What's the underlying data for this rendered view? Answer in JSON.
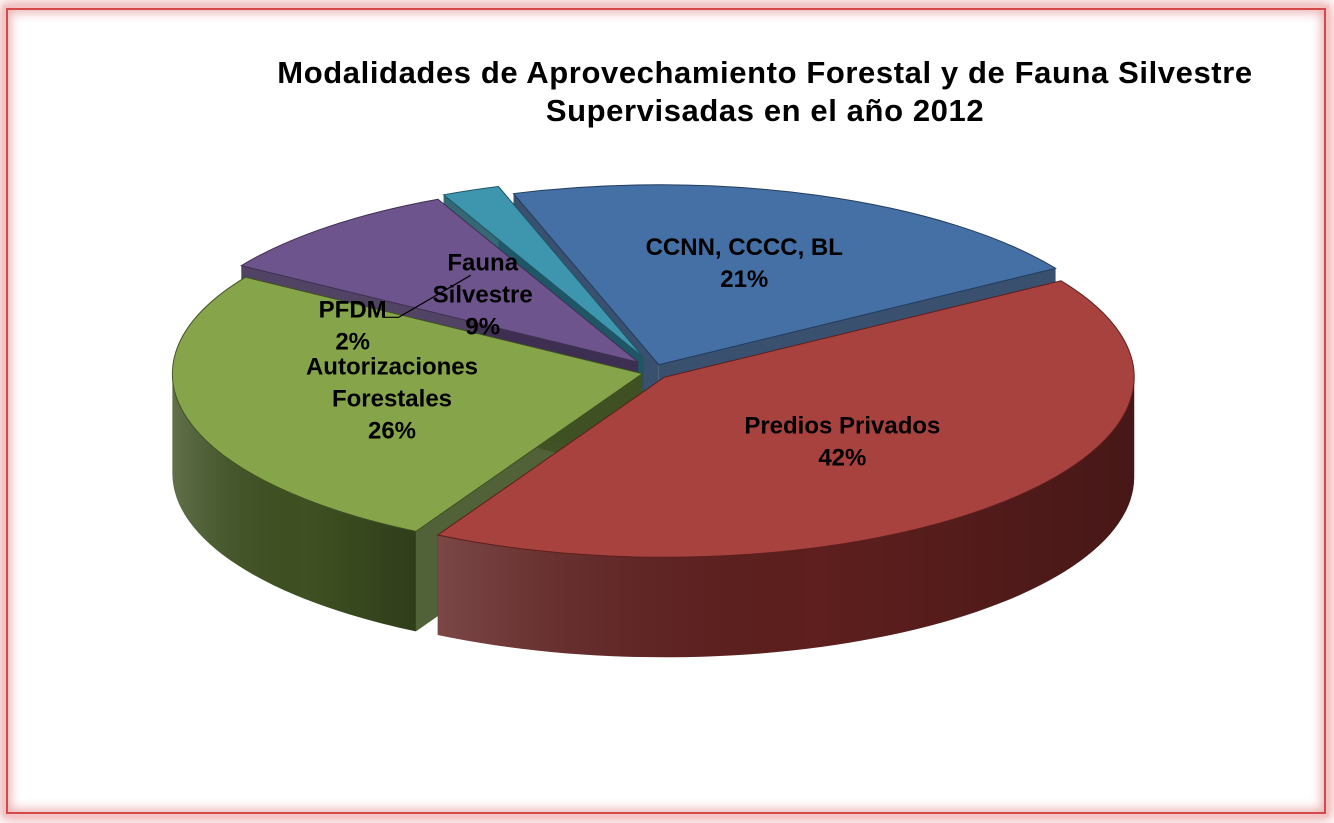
{
  "chart_data": {
    "type": "pie",
    "variant": "3d-exploded",
    "title": "Modalidades de Aprovechamiento Forestal y de Fauna Silvestre Supervisadas en el año 2012",
    "title_lines": [
      "Modalidades de Aprovechamiento Forestal y de Fauna Silvestre",
      "Supervisadas en el año 2012"
    ],
    "legend": "none",
    "slices": [
      {
        "name": "Predios Privados",
        "label_lines": [
          "Predios Privados"
        ],
        "value": 42,
        "pct_label": "42%",
        "color": "#A8423F",
        "side_color": "#5E1F1E"
      },
      {
        "name": "Autorizaciones Forestales",
        "label_lines": [
          "Autorizaciones",
          "Forestales"
        ],
        "value": 26,
        "pct_label": "26%",
        "color": "#86A44A",
        "side_color": "#3F5122"
      },
      {
        "name": "Fauna Silvestre",
        "label_lines": [
          "Fauna",
          "Silvestre"
        ],
        "value": 9,
        "pct_label": "9%",
        "color": "#6E548D",
        "side_color": "#3E2F52"
      },
      {
        "name": "PFDM",
        "label_lines": [
          "PFDM"
        ],
        "value": 2,
        "pct_label": "2%",
        "color": "#3D96AE",
        "side_color": "#1F5766"
      },
      {
        "name": "CCNN, CCCC, BL",
        "label_lines": [
          "CCNN, CCCC, BL"
        ],
        "value": 21,
        "pct_label": "21%",
        "color": "#4470A5",
        "side_color": "#233D5E"
      }
    ]
  }
}
